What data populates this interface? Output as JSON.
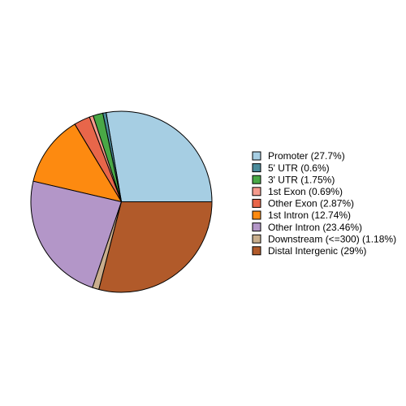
{
  "chart_data": {
    "type": "pie",
    "categories": [
      "Promoter (27.7%)",
      "5' UTR (0.6%)",
      "3' UTR (1.75%)",
      "1st Exon (0.69%)",
      "Other Exon (2.87%)",
      "1st Intron (12.74%)",
      "Other Intron (23.46%)",
      "Downstream (<=300) (1.18%)",
      "Distal Intergenic (29%)"
    ],
    "values": [
      27.7,
      0.6,
      1.75,
      0.69,
      2.87,
      12.74,
      23.46,
      1.18,
      29
    ],
    "colors": [
      "#a6cee3",
      "#4b8c9c",
      "#49a846",
      "#f59a8c",
      "#e8664a",
      "#fd8a10",
      "#b396c8",
      "#c9ae8d",
      "#b15a2a"
    ],
    "legend": "right"
  }
}
